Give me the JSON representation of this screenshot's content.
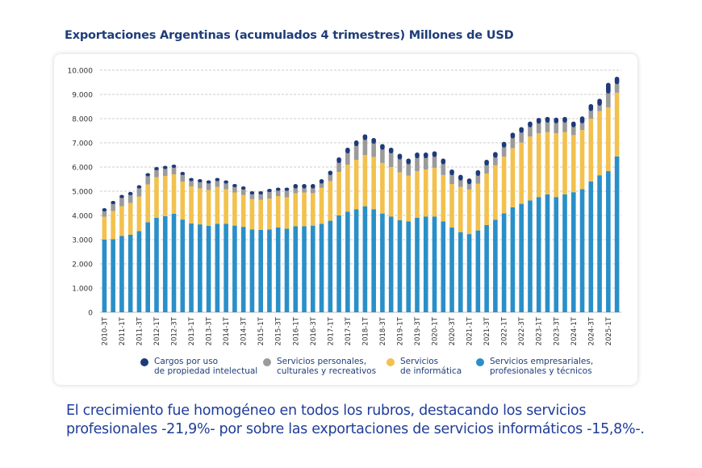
{
  "title": "Exportaciones Argentinas (acumulados 4 trimestres) Millones de USD",
  "caption": "El crecimiento fue homogéneo en todos los rubros, destacando los servicios profesionales -21,9%- por sobre las exportaciones de servicios informáticos -15,8%-.",
  "chart_data": {
    "type": "bar",
    "stacked": true,
    "title": "Exportaciones Argentinas (acumulados 4 trimestres) Millones de USD",
    "xlabel": "",
    "ylabel": "",
    "ylim": [
      0,
      10000
    ],
    "yticks": [
      0,
      1000,
      2000,
      3000,
      4000,
      5000,
      6000,
      7000,
      8000,
      9000,
      10000
    ],
    "ytick_labels": [
      "0",
      "1.000",
      "2.000",
      "3.000",
      "4.000",
      "5.000",
      "6.000",
      "7.000",
      "8.000",
      "9.000",
      "10.000"
    ],
    "grid": "horizontal dashed",
    "legend_position": "bottom",
    "categories": [
      "2010-3T",
      "2010-4T",
      "2011-1T",
      "2011-2T",
      "2011-3T",
      "2011-4T",
      "2012-1T",
      "2012-2T",
      "2012-3T",
      "2012-4T",
      "2013-1T",
      "2013-2T",
      "2013-3T",
      "2013-4T",
      "2014-1T",
      "2014-2T",
      "2014-3T",
      "2014-4T",
      "2015-1T",
      "2015-2T",
      "2015-3T",
      "2015-4T",
      "2016-1T",
      "2016-2T",
      "2016-3T",
      "2016-4T",
      "2017-1T",
      "2017-2T",
      "2017-3T",
      "2017-4T",
      "2018-1T",
      "2018-2T",
      "2018-3T",
      "2018-4T",
      "2019-1T",
      "2019-2T",
      "2019-3T",
      "2019-4T",
      "2020-1T",
      "2020-2T",
      "2020-3T",
      "2020-4T",
      "2021-1T",
      "2021-2T",
      "2021-3T",
      "2021-4T",
      "2022-1T",
      "2022-2T",
      "2022-3T",
      "2022-4T",
      "2023-1T",
      "2023-2T",
      "2023-3T",
      "2023-4T",
      "2024-1T",
      "2024-2T",
      "2024-3T",
      "2024-4T",
      "2025-1T",
      "2025-2T"
    ],
    "series": [
      {
        "name": "Servicios empresariales,\nprofesionales y técnicos",
        "color": "#2a8fc8",
        "values": [
          3000,
          3020,
          3150,
          3200,
          3350,
          3720,
          3900,
          3970,
          4070,
          3830,
          3670,
          3630,
          3570,
          3650,
          3650,
          3580,
          3530,
          3420,
          3400,
          3420,
          3500,
          3450,
          3550,
          3550,
          3580,
          3650,
          3780,
          4000,
          4150,
          4250,
          4380,
          4250,
          4080,
          3950,
          3800,
          3750,
          3900,
          3950,
          3950,
          3750,
          3500,
          3310,
          3230,
          3380,
          3600,
          3820,
          4090,
          4340,
          4480,
          4620,
          4760,
          4870,
          4760,
          4870,
          4960,
          5090,
          5400,
          5660,
          5830,
          6440
        ]
      },
      {
        "name": "Servicios\nde informática",
        "color": "#f2c14e",
        "values": [
          950,
          1160,
          1230,
          1320,
          1430,
          1560,
          1680,
          1660,
          1630,
          1570,
          1530,
          1490,
          1480,
          1530,
          1430,
          1370,
          1320,
          1250,
          1250,
          1280,
          1300,
          1300,
          1370,
          1400,
          1340,
          1500,
          1640,
          1800,
          1950,
          2050,
          2120,
          2170,
          2090,
          2050,
          1980,
          1900,
          1930,
          1950,
          2020,
          1920,
          1800,
          1870,
          1840,
          1930,
          2130,
          2250,
          2340,
          2440,
          2530,
          2640,
          2640,
          2570,
          2640,
          2570,
          2360,
          2440,
          2600,
          2650,
          2630,
          2630
        ]
      },
      {
        "name": "Servicios personales,\nculturales y recreativos",
        "color": "#9b9b9b",
        "values": [
          250,
          320,
          370,
          350,
          370,
          370,
          320,
          320,
          300,
          300,
          250,
          280,
          300,
          270,
          270,
          250,
          250,
          230,
          250,
          300,
          250,
          300,
          230,
          200,
          230,
          200,
          280,
          400,
          500,
          600,
          650,
          580,
          580,
          600,
          570,
          500,
          570,
          500,
          480,
          480,
          400,
          300,
          260,
          360,
          370,
          350,
          410,
          440,
          440,
          420,
          430,
          430,
          440,
          430,
          360,
          310,
          350,
          260,
          610,
          390
        ]
      },
      {
        "name": "Cargos por uso\nde propiedad intelectual",
        "color": "#1f3a7a",
        "values": [
          100,
          100,
          100,
          100,
          100,
          100,
          100,
          100,
          100,
          100,
          100,
          100,
          100,
          100,
          100,
          100,
          100,
          100,
          100,
          100,
          100,
          100,
          150,
          150,
          150,
          150,
          150,
          200,
          200,
          200,
          200,
          200,
          200,
          200,
          200,
          200,
          200,
          200,
          200,
          200,
          200,
          200,
          200,
          200,
          200,
          200,
          200,
          200,
          200,
          200,
          200,
          200,
          200,
          200,
          200,
          250,
          250,
          250,
          410,
          270
        ]
      }
    ],
    "legend_order": [
      3,
      2,
      1,
      0
    ]
  }
}
